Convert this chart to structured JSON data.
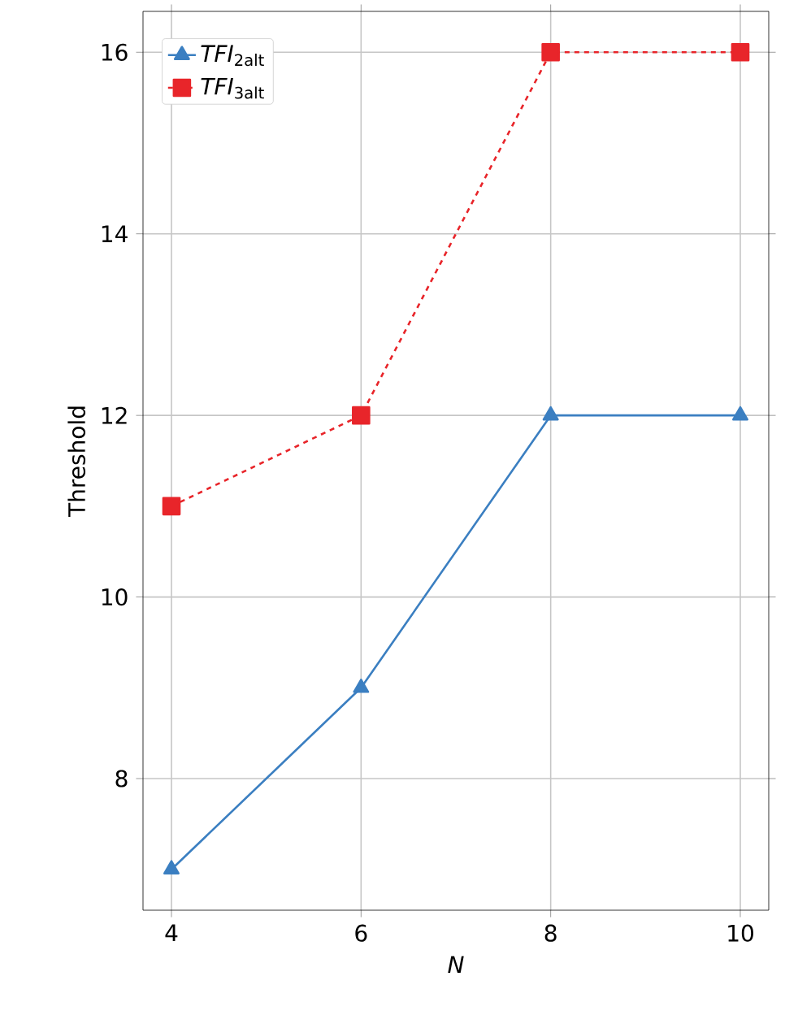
{
  "chart_data": {
    "type": "line",
    "x": [
      4,
      6,
      8,
      10
    ],
    "xlabel": "N",
    "ylabel": "Threshold",
    "series": [
      {
        "name": "*TFI*$_{2alt}$",
        "color": "#3b7fc1",
        "values": [
          7,
          9,
          12,
          12
        ],
        "marker": "triangle",
        "line_style": "solid"
      },
      {
        "name": "*TFI*$_{3alt}$",
        "color": "#e8252a",
        "values": [
          11,
          12,
          16,
          16
        ],
        "marker": "square",
        "line_style": "dashed"
      }
    ],
    "xlim": [
      3.7,
      10.3
    ],
    "ylim": [
      6.55,
      16.45
    ],
    "xticks": [
      4,
      6,
      8,
      10
    ],
    "yticks": [
      8,
      10,
      12,
      14,
      16
    ],
    "grid": true,
    "legend": "top left"
  }
}
